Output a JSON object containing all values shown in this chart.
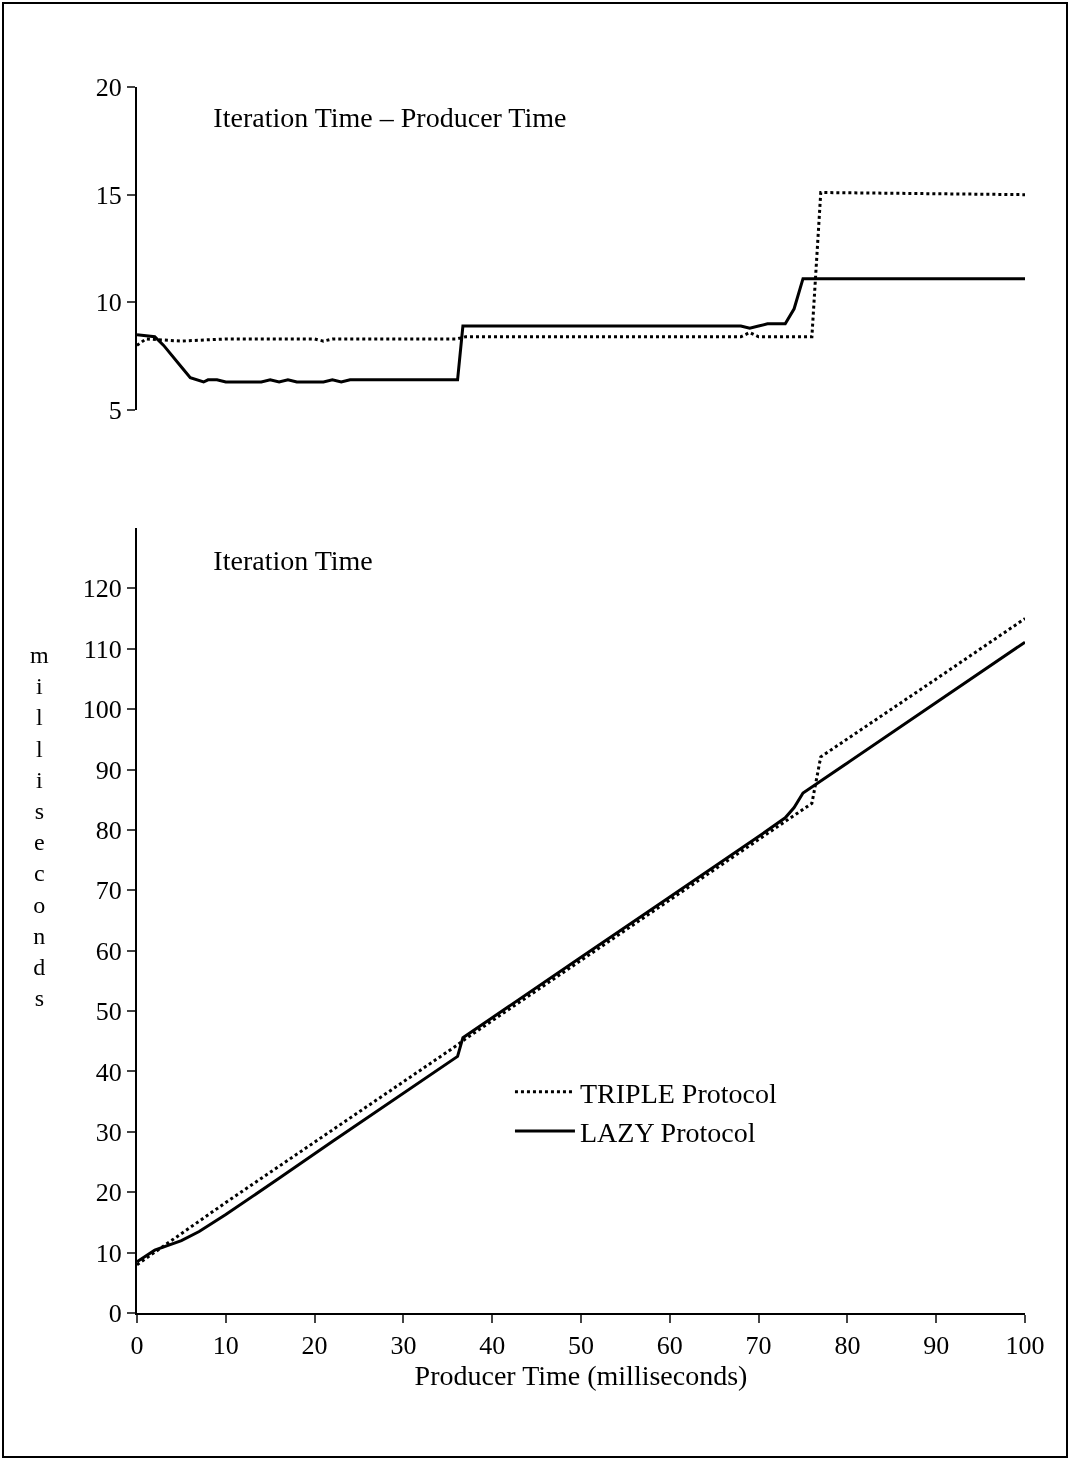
{
  "chart_data": [
    {
      "type": "line",
      "title": "Iteration Time – Producer Time",
      "xlim": [
        0,
        100
      ],
      "ylim": [
        5,
        20
      ],
      "yticks": [
        5,
        10,
        15,
        20
      ],
      "tick_labels": "y",
      "grid": false,
      "legend": false,
      "series": [
        {
          "color": "#000000",
          "line_style": "dotted",
          "x": [
            0,
            1,
            5,
            10,
            20,
            21,
            22,
            36,
            37,
            68,
            69,
            70,
            76,
            77,
            100
          ],
          "values": [
            8.0,
            8.3,
            8.2,
            8.3,
            8.3,
            8.2,
            8.3,
            8.3,
            8.4,
            8.4,
            8.6,
            8.4,
            8.4,
            15.1,
            15.0
          ]
        },
        {
          "color": "#000000",
          "line_style": "solid",
          "x": [
            0,
            2,
            3,
            5,
            6,
            7.5,
            8,
            9,
            10,
            14,
            15,
            16,
            17,
            18,
            21,
            22,
            23,
            24,
            36.1,
            36.7,
            68,
            69,
            70,
            71,
            73,
            74,
            75,
            100
          ],
          "values": [
            8.5,
            8.4,
            8.0,
            7.0,
            6.5,
            6.3,
            6.4,
            6.4,
            6.3,
            6.3,
            6.4,
            6.3,
            6.4,
            6.3,
            6.3,
            6.4,
            6.3,
            6.4,
            6.4,
            8.9,
            8.9,
            8.8,
            8.9,
            9.0,
            9.0,
            9.7,
            11.1,
            11.1
          ]
        }
      ]
    },
    {
      "type": "line",
      "title": "Iteration Time",
      "xlabel": "Producer Time (milliseconds)",
      "ylabel": "milliseconds",
      "xlim": [
        0,
        100
      ],
      "ylim": [
        0,
        130
      ],
      "xticks": [
        0,
        10,
        20,
        30,
        40,
        50,
        60,
        70,
        80,
        90,
        100
      ],
      "yticks": [
        0,
        10,
        20,
        30,
        40,
        50,
        60,
        70,
        80,
        90,
        100,
        110,
        120
      ],
      "grid": false,
      "legend": "bottom right",
      "series": [
        {
          "name": "TRIPLE Protocol",
          "color": "#000000",
          "line_style": "dotted",
          "x": [
            0,
            10,
            20,
            30,
            36,
            37,
            50,
            60,
            70,
            76,
            77,
            90,
            100
          ],
          "values": [
            8,
            18.3,
            28.3,
            38.3,
            44.3,
            45.4,
            58.4,
            68.4,
            78.4,
            84.4,
            92.1,
            105,
            115
          ]
        },
        {
          "name": "LAZY Protocol",
          "color": "#000000",
          "line_style": "solid",
          "x": [
            0,
            2,
            5,
            7,
            10,
            16,
            22,
            36.1,
            36.7,
            50,
            60,
            70,
            73,
            74,
            75,
            80,
            90,
            100
          ],
          "values": [
            8.5,
            10.4,
            12,
            13.5,
            16.3,
            22.3,
            28.4,
            42.5,
            45.6,
            58.9,
            68.9,
            78.9,
            82,
            83.7,
            86.1,
            91.1,
            101.1,
            111.1
          ]
        }
      ]
    }
  ]
}
